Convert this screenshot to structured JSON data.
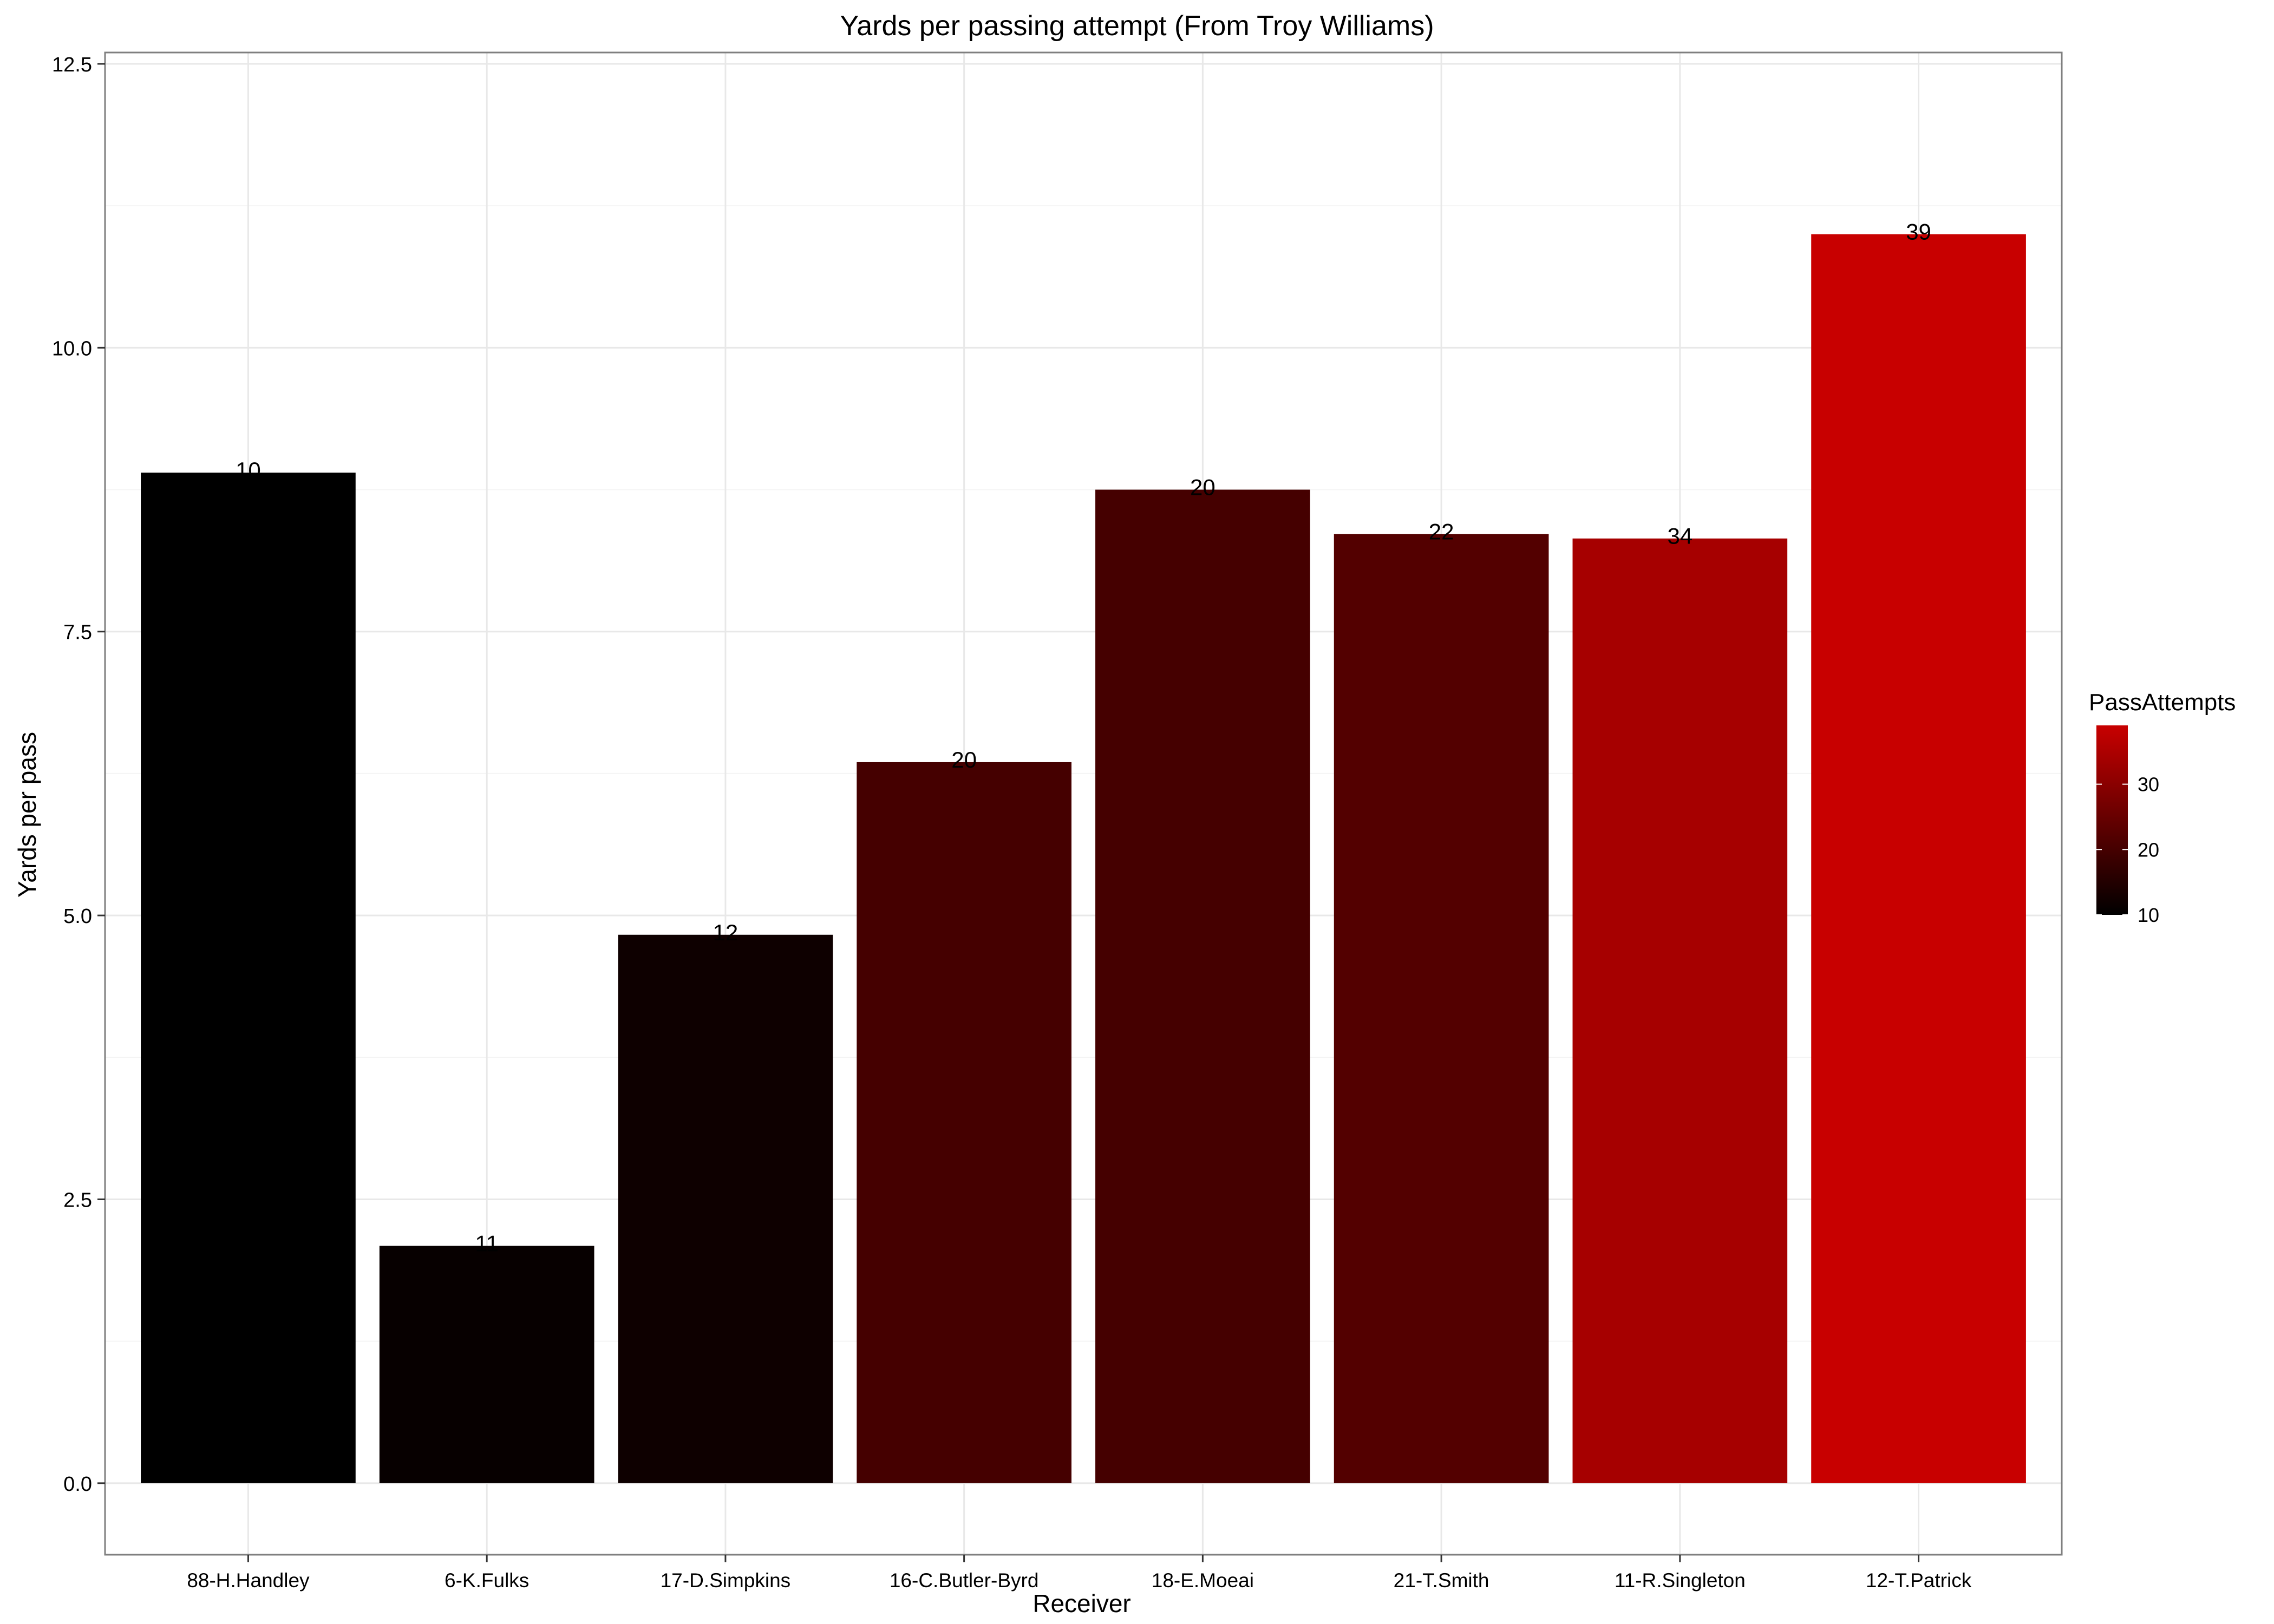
{
  "chart_data": {
    "type": "bar",
    "title": "Yards per passing attempt (From Troy Williams)",
    "xlabel": "Receiver",
    "ylabel": "Yards per pass",
    "categories": [
      "88-H.Handley",
      "6-K.Fulks",
      "17-D.Simpkins",
      "16-C.Butler-Byrd",
      "18-E.Moeai",
      "21-T.Smith",
      "11-R.Singleton",
      "12-T.Patrick"
    ],
    "values": [
      8.9,
      2.09,
      4.83,
      6.35,
      8.75,
      8.36,
      8.32,
      11.0
    ],
    "fill_values": [
      10,
      11,
      12,
      20,
      20,
      22,
      34,
      39
    ],
    "data_labels": [
      "10",
      "11",
      "12",
      "20",
      "20",
      "22",
      "34",
      "39"
    ],
    "ylim": [
      -0.63,
      12.6
    ],
    "yticks": [
      0.0,
      2.5,
      5.0,
      7.5,
      10.0,
      12.5
    ],
    "ytick_labels": [
      "0.0",
      "2.5",
      "5.0",
      "7.5",
      "10.0",
      "12.5"
    ],
    "grid": true,
    "legend": {
      "title": "PassAttempts",
      "position": "right",
      "ticks": [
        10,
        20,
        30
      ],
      "tick_labels": [
        "10",
        "20",
        "30"
      ],
      "range": [
        10,
        39
      ],
      "color_low": "#000000",
      "color_high": "#c80000"
    }
  }
}
